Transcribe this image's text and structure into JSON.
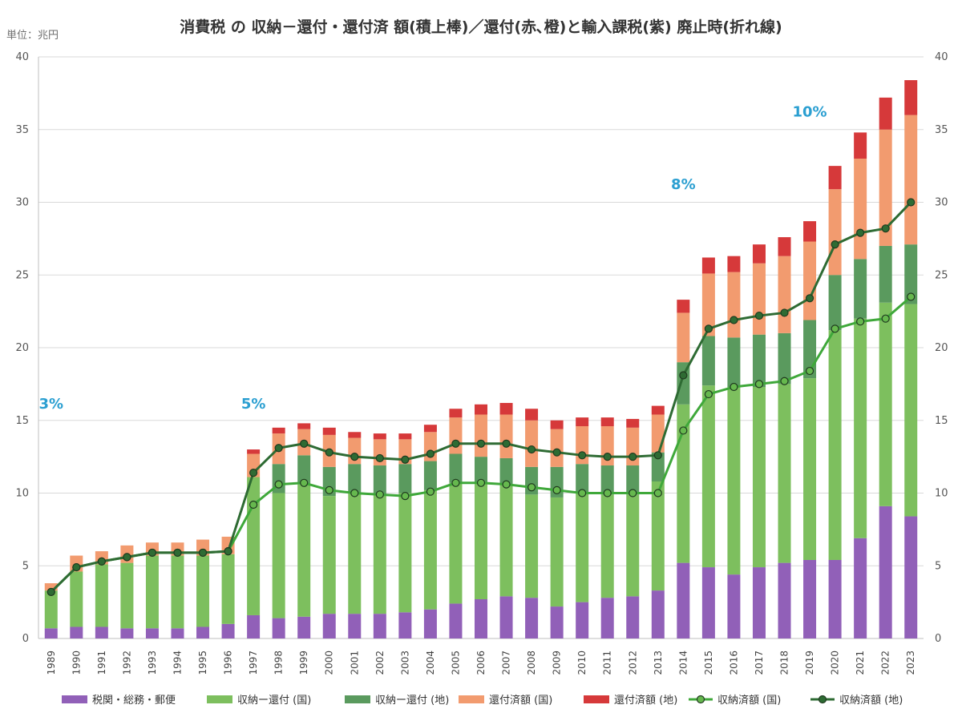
{
  "chart_data": {
    "type": "bar",
    "title": "消費税 の 収納－還付・還付済 額(積上棒)／還付(赤､橙)と輸入課税(紫) 廃止時(折れ線)",
    "unit_label": "単位：兆円",
    "ylim": [
      0,
      40
    ],
    "yticks": [
      "0",
      "5",
      "10",
      "15",
      "20",
      "25",
      "30",
      "35",
      "40"
    ],
    "grid": true,
    "legend_position": "bottom",
    "categories": [
      "1989",
      "1990",
      "1991",
      "1992",
      "1993",
      "1994",
      "1995",
      "1996",
      "1997",
      "1998",
      "1999",
      "2000",
      "2001",
      "2002",
      "2003",
      "2004",
      "2005",
      "2006",
      "2007",
      "2008",
      "2009",
      "2010",
      "2011",
      "2012",
      "2013",
      "2014",
      "2015",
      "2016",
      "2017",
      "2018",
      "2019",
      "2020",
      "2021",
      "2022",
      "2023"
    ],
    "stacked_series": [
      {
        "name": "税関・総務・郵便",
        "color": "#9160b8",
        "values": [
          0.7,
          0.8,
          0.8,
          0.7,
          0.7,
          0.7,
          0.8,
          1.0,
          1.6,
          1.4,
          1.5,
          1.7,
          1.7,
          1.7,
          1.8,
          2.0,
          2.4,
          2.7,
          2.9,
          2.8,
          2.2,
          2.5,
          2.8,
          2.9,
          3.3,
          5.2,
          4.9,
          4.4,
          4.9,
          5.2,
          5.4,
          5.4,
          6.9,
          9.1,
          8.4
        ]
      },
      {
        "name": "収納ー還付 (国)",
        "color": "#7dbf5e",
        "values": [
          2.6,
          3.8,
          4.3,
          4.5,
          5.0,
          5.0,
          4.9,
          4.8,
          9.5,
          8.6,
          9.1,
          8.1,
          8.3,
          8.2,
          8.2,
          8.2,
          8.3,
          8.0,
          7.7,
          7.1,
          7.5,
          7.5,
          7.1,
          7.0,
          7.5,
          10.9,
          12.5,
          12.9,
          12.4,
          12.3,
          12.5,
          15.8,
          15.1,
          14.0,
          14.6
        ]
      },
      {
        "name": "収納ー還付 (地)",
        "color": "#5a9a5e",
        "values": [
          0,
          0,
          0,
          0,
          0,
          0,
          0,
          0,
          0,
          2.0,
          2.0,
          2.0,
          2.0,
          2.0,
          2.0,
          2.0,
          2.0,
          1.8,
          1.8,
          1.9,
          2.1,
          2.0,
          2.0,
          2.0,
          2.0,
          2.9,
          3.4,
          3.4,
          3.6,
          3.5,
          4.0,
          3.8,
          4.1,
          3.9,
          4.1
        ]
      },
      {
        "name": "還付済額 (国)",
        "color": "#f29b6f",
        "values": [
          0.5,
          1.1,
          0.9,
          1.2,
          0.9,
          0.9,
          1.1,
          1.2,
          1.6,
          2.1,
          1.8,
          2.2,
          1.8,
          1.8,
          1.7,
          2.0,
          2.5,
          2.9,
          3.0,
          3.2,
          2.6,
          2.6,
          2.7,
          2.6,
          2.6,
          3.4,
          4.3,
          4.5,
          4.9,
          5.3,
          5.4,
          5.9,
          6.9,
          8.0,
          8.9
        ]
      },
      {
        "name": "還付済額 (地)",
        "color": "#d6393a",
        "values": [
          0,
          0,
          0,
          0,
          0,
          0,
          0,
          0,
          0.3,
          0.4,
          0.4,
          0.5,
          0.4,
          0.4,
          0.4,
          0.5,
          0.6,
          0.7,
          0.8,
          0.8,
          0.6,
          0.6,
          0.6,
          0.6,
          0.6,
          0.9,
          1.1,
          1.1,
          1.3,
          1.3,
          1.4,
          1.6,
          1.8,
          2.2,
          2.4
        ]
      }
    ],
    "line_series": [
      {
        "name": "収納済額 (国)",
        "color": "#3fa83a",
        "marker_fill": "#66b84e",
        "values": [
          3.2,
          4.9,
          5.3,
          5.6,
          5.9,
          5.9,
          5.9,
          6.0,
          9.2,
          10.6,
          10.7,
          10.2,
          10.0,
          9.9,
          9.8,
          10.1,
          10.7,
          10.7,
          10.6,
          10.4,
          10.2,
          10.0,
          10.0,
          10.0,
          10.0,
          14.3,
          16.8,
          17.3,
          17.5,
          17.7,
          18.4,
          21.3,
          21.8,
          22.0,
          23.5
        ]
      },
      {
        "name": "収納済額 (地)",
        "color": "#2e6b33",
        "marker_fill": "#2e6b33",
        "values": [
          3.2,
          4.9,
          5.3,
          5.6,
          5.9,
          5.9,
          5.9,
          6.0,
          11.4,
          13.1,
          13.4,
          12.8,
          12.5,
          12.4,
          12.3,
          12.7,
          13.4,
          13.4,
          13.4,
          13.0,
          12.8,
          12.6,
          12.5,
          12.5,
          12.6,
          18.1,
          21.3,
          21.9,
          22.2,
          22.4,
          23.4,
          27.1,
          27.9,
          28.2,
          30.0
        ]
      }
    ],
    "rate_labels": [
      {
        "text": "3%",
        "category": "1989",
        "y": 15.8
      },
      {
        "text": "5%",
        "category": "1997",
        "y": 15.8
      },
      {
        "text": "8%",
        "category": "2014",
        "y": 30.9
      },
      {
        "text": "10%",
        "category": "2019",
        "y": 35.9
      }
    ],
    "rate_color": "#2b9fd1"
  }
}
